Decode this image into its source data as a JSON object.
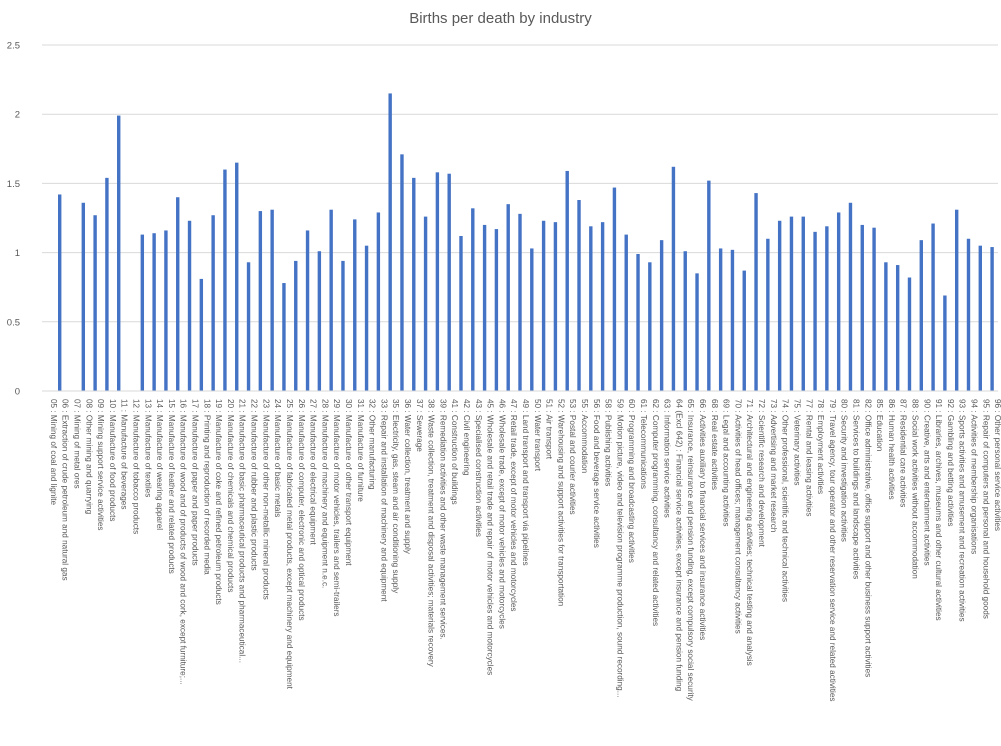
{
  "chart_data": {
    "type": "bar",
    "title": "Births per death by industry",
    "xlabel": "",
    "ylabel": "",
    "ylim": [
      0,
      2.5
    ],
    "yticks": [
      "0",
      "0.5",
      "1",
      "1.5",
      "2",
      "2.5"
    ],
    "grid": true,
    "legend": "none",
    "bar_color": "#4472C4",
    "categories": [
      "05 : Mining of coal and lignite",
      "06 : Extraction of crude petroleum and natural gas",
      "07 : Mining of metal ores",
      "08 : Other mining and quarrying",
      "09 : Mining support service activities",
      "10 : Manufacture of food products",
      "11 : Manufacture of beverages",
      "12 : Manufacture of tobacco products",
      "13 : Manufacture of textiles",
      "14 : Manufacture of wearing apparel",
      "15 : Manufacture of leather and related products",
      "16 : Manufacture of wood and of products of wood and cork, except furniture;...",
      "17 : Manufacture of paper and paper products",
      "18 : Printing and reproduction of recorded media",
      "19 : Manufacture of coke and refined petroleum products",
      "20 : Manufacture of chemicals and chemical products",
      "21 : Manufacture of basic pharmaceutical products and pharmaceutical...",
      "22 : Manufacture of rubber and plastic products",
      "23 : Manufacture of other non-metallic mineral products",
      "24 : Manufacture of basic metals",
      "25 : Manufacture of fabricated metal products, except machinery and equipment",
      "26 : Manufacture of computer, electronic and optical products",
      "27 : Manufacture of electrical equipment",
      "28 : Manufacture of machinery and equipment n.e.c.",
      "29 : Manufacture of motor vehicles, trailers and semi-trailers",
      "30 : Manufacture of other transport equipment",
      "31 : Manufacture of furniture",
      "32 : Other manufacturing",
      "33 : Repair and installation of machinery and equipment",
      "35 : Electricity, gas, steam and air conditioning supply",
      "36 : Water collection, treatment and supply",
      "37 : Sewerage",
      "38 : Waste collection, treatment and disposal activities; materials recovery",
      "39 : Remediation activities and other waste management services.",
      "41 : Construction of buildings",
      "42 : Civil engineering",
      "43 : Specialised construction activities",
      "45 : Wholesale and retail trade and repair of motor vehicles and motorcycles",
      "46 : Wholesale trade, except of motor vehicles and motorcycles",
      "47 : Retail trade, except of motor vehicles and motorcycles",
      "49 : Land transport and transport via pipelines",
      "50 : Water transport",
      "51 : Air transport",
      "52 : Warehousing and support activities for transportation",
      "53 : Postal and courier activities",
      "55 : Accommodation",
      "56 : Food and beverage service activities",
      "58 : Publishing activities",
      "59 : Motion picture, video and television programme production, sound recording...",
      "60 : Programming and broadcasting activities",
      "61 : Telecommunications",
      "62 : Computer programming, consultancy and related activities",
      "63 : Information service activities",
      "64 (Excl 642) : Financial service activities, except insurance and pension funding",
      "65 : Insurance, reinsurance and pension funding, except compulsory social security",
      "66 : Activities auxiliary to financial services and insurance activities",
      "68 : Real estate activities",
      "69 : Legal and accounting activities",
      "70 : Activities of head offices; management consultancy activities",
      "71 : Architectural and engineering activities; technical testing and analysis",
      "72 : Scientific research and development",
      "73 : Advertising and market research",
      "74 : Other professional, scientific and technical activities",
      "75 : Veterinary activities",
      "77 : Rental and leasing activities",
      "78 : Employment activities",
      "79 : Travel agency, tour operator and other reservation service and related activities",
      "80 : Security and investigation activities",
      "81 : Services to buildings and landscape activities",
      "82 : Office administrative, office support and other business support activities",
      "85 : Education",
      "86 : Human health activities",
      "87 : Residential care activities",
      "88 : Social work activities without accommodation",
      "90 : Creative, arts and entertainment activities",
      "91 : Libraries, archives, museums and other cultural activities",
      "92 : Gambling and betting activities",
      "93 : Sports activities and amusement and recreation activities",
      "94 : Activities of membership organisations",
      "95 : Repair of computers and personal and household goods",
      "96 : Other personal service activities"
    ],
    "values": [
      0,
      1.42,
      0,
      1.36,
      1.27,
      1.54,
      1.99,
      0,
      1.13,
      1.14,
      1.16,
      1.4,
      1.23,
      0.81,
      1.27,
      1.6,
      1.65,
      0.93,
      1.3,
      1.31,
      0.78,
      0.94,
      1.16,
      1.01,
      1.31,
      0.94,
      1.24,
      1.05,
      1.29,
      2.15,
      1.71,
      1.54,
      1.26,
      1.58,
      1.57,
      1.12,
      1.32,
      1.2,
      1.17,
      1.35,
      1.28,
      1.03,
      1.23,
      1.22,
      1.59,
      1.38,
      1.19,
      1.22,
      1.47,
      1.13,
      0.99,
      0.93,
      1.09,
      1.62,
      1.01,
      0.85,
      1.52,
      1.03,
      1.02,
      0.87,
      1.43,
      1.1,
      1.23,
      1.26,
      1.26,
      1.15,
      1.19,
      1.29,
      1.36,
      1.2,
      1.18,
      0.93,
      0.91,
      0.82,
      1.09,
      1.21,
      0.69,
      1.31,
      1.1,
      1.05,
      1.04
    ]
  }
}
